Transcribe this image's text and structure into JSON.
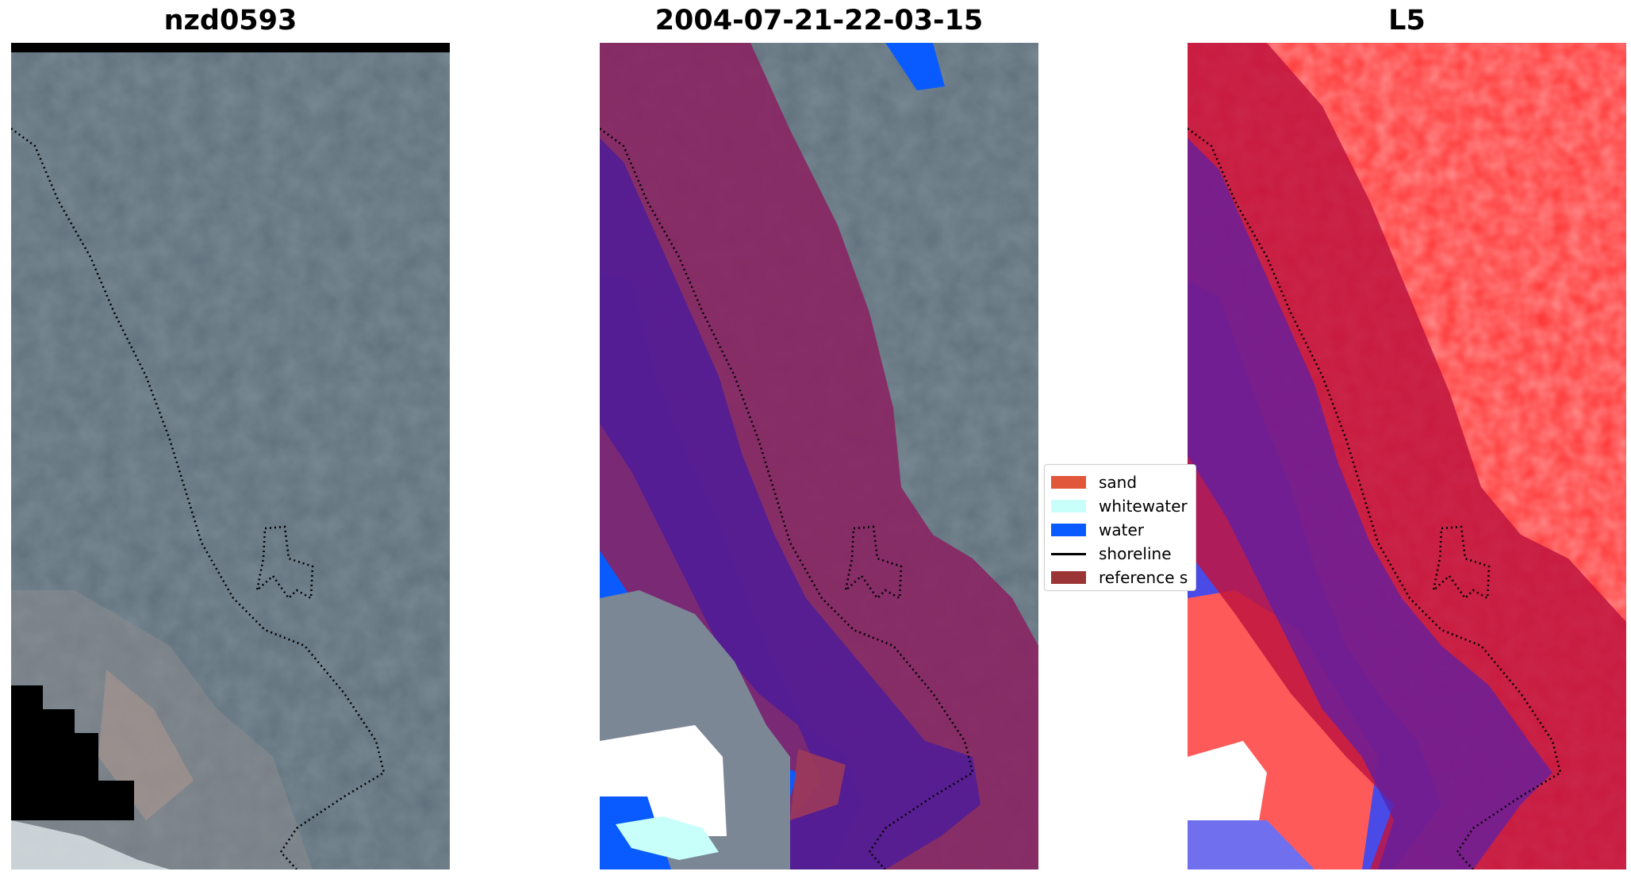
{
  "panels": [
    {
      "title": "nzd0593"
    },
    {
      "title": "2004-07-21-22-03-15"
    },
    {
      "title": "L5"
    }
  ],
  "legend": {
    "items": [
      {
        "label": "sand",
        "color": "#e0573a",
        "kind": "patch"
      },
      {
        "label": "whitewater",
        "color": "#c8fffb",
        "kind": "patch"
      },
      {
        "label": "water",
        "color": "#0a5bff",
        "kind": "patch"
      },
      {
        "label": "shoreline",
        "color": "#000000",
        "kind": "line"
      },
      {
        "label": "reference s",
        "color": "#9b3535",
        "kind": "patch"
      }
    ]
  },
  "colors": {
    "rgb_image_base": "#5e6f7c",
    "reference_buffer": "#9b2a55",
    "water_overlay": "#0a5bff",
    "whitewater_overlay": "#c8fffb",
    "index_positive": "#ff2a2a",
    "index_negative": "#3a3ae8"
  }
}
